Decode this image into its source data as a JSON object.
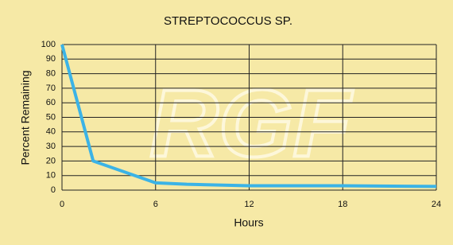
{
  "chart_data": {
    "type": "line",
    "title": "STREPTOCOCCUS SP.",
    "watermark": "RGF",
    "x_label": "Hours",
    "y_label": "Percent Remaining",
    "x": [
      0,
      2,
      6,
      8,
      12,
      18,
      24
    ],
    "series": [
      {
        "name": "Streptococcus sp.",
        "color": "#3bb3e6",
        "values": [
          100,
          20,
          5,
          4,
          3,
          3,
          2.5
        ]
      }
    ],
    "xlim": [
      0,
      24
    ],
    "xticks": [
      0,
      6,
      12,
      18,
      24
    ],
    "ylim": [
      0,
      100
    ],
    "yticks": [
      0,
      10,
      20,
      30,
      40,
      50,
      60,
      70,
      80,
      90,
      100
    ],
    "grid": true,
    "legend": false
  }
}
